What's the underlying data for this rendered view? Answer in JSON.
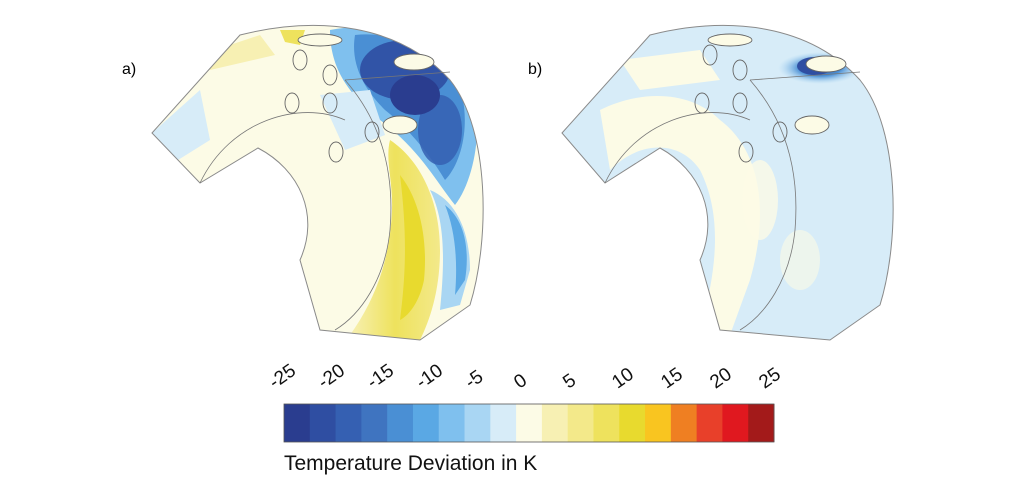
{
  "panels": [
    {
      "label": "a)"
    },
    {
      "label": "b)"
    }
  ],
  "colorbar": {
    "title": "Temperature Deviation in K",
    "ticks": [
      "-25",
      "-20",
      "-15",
      "-10",
      "-5",
      "0",
      "5",
      "10",
      "15",
      "20",
      "25"
    ],
    "range": [
      -25,
      25
    ],
    "colors": [
      "#2a3d8f",
      "#2f4ea2",
      "#3560b2",
      "#3f74c0",
      "#4a8fd4",
      "#5aa8e4",
      "#7fc0ee",
      "#a9d6f3",
      "#d7ecf8",
      "#fcfbe6",
      "#f7f0b3",
      "#f3e98a",
      "#eee25d",
      "#e8da2e",
      "#f9c520",
      "#ef7f22",
      "#e8402a",
      "#e0181f",
      "#a31a1a"
    ]
  }
}
